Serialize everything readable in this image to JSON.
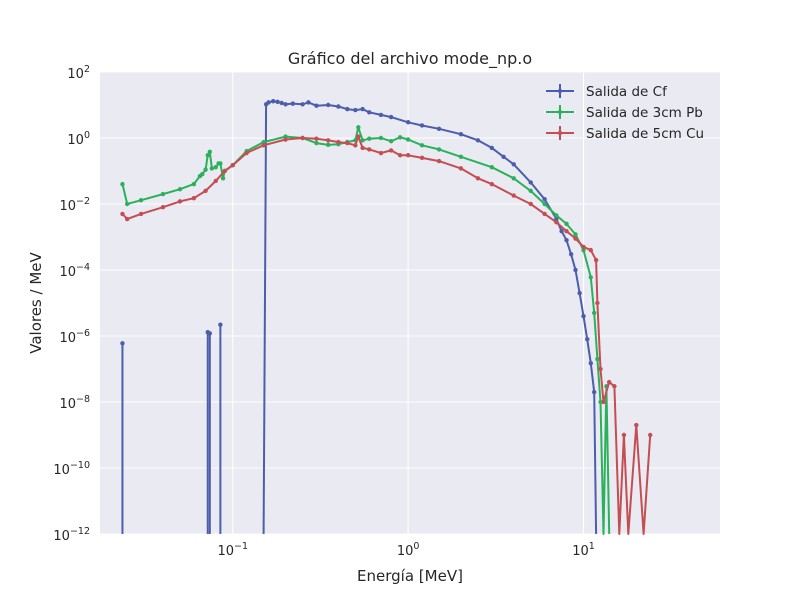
{
  "chart_data": {
    "type": "line",
    "title": "Gráfico del archivo mode_np.o",
    "xlabel": "Energía [MeV]",
    "ylabel": "Valores / MeV",
    "xscale": "log",
    "yscale": "log",
    "xlim": [
      0.0175,
      60
    ],
    "ylim": [
      1e-12,
      100
    ],
    "grid": true,
    "legend_position": "top-right",
    "x_ticks": [
      {
        "value": 0.1,
        "base": "10",
        "exp": "−1"
      },
      {
        "value": 1,
        "base": "10",
        "exp": "0"
      },
      {
        "value": 10,
        "base": "10",
        "exp": "1"
      }
    ],
    "y_ticks": [
      {
        "value": 1e-12,
        "base": "10",
        "exp": "−12"
      },
      {
        "value": 1e-10,
        "base": "10",
        "exp": "−10"
      },
      {
        "value": 1e-08,
        "base": "10",
        "exp": "−8"
      },
      {
        "value": 1e-06,
        "base": "10",
        "exp": "−6"
      },
      {
        "value": 0.0001,
        "base": "10",
        "exp": "−4"
      },
      {
        "value": 0.01,
        "base": "10",
        "exp": "−2"
      },
      {
        "value": 1,
        "base": "10",
        "exp": "0"
      },
      {
        "value": 100,
        "base": "10",
        "exp": "2"
      }
    ],
    "series": [
      {
        "name": "Salida de Cf",
        "color": "#4c5eab",
        "x": [
          0.15,
          0.155,
          0.16,
          0.17,
          0.18,
          0.19,
          0.2,
          0.22,
          0.25,
          0.27,
          0.3,
          0.35,
          0.4,
          0.45,
          0.5,
          0.55,
          0.6,
          0.7,
          0.8,
          1.0,
          1.2,
          1.5,
          2.0,
          2.5,
          3.0,
          3.5,
          4.0,
          5.0,
          6.0,
          7.0,
          7.5,
          8.0,
          8.5,
          9.0,
          9.5,
          10.0,
          10.5,
          11.0,
          11.5,
          11.8
        ],
        "y": [
          1e-12,
          10.5,
          12.0,
          13.0,
          12.5,
          11.5,
          10.5,
          11.0,
          10.5,
          12.0,
          9.5,
          10.0,
          9.0,
          7.5,
          7.0,
          7.5,
          6.0,
          5.0,
          4.3,
          3.0,
          2.4,
          1.9,
          1.3,
          0.85,
          0.5,
          0.27,
          0.16,
          0.045,
          0.014,
          0.0035,
          0.0015,
          0.0008,
          0.0003,
          0.0001,
          2e-05,
          4e-06,
          8e-07,
          1.5e-07,
          2e-08,
          1e-12
        ],
        "spikes": [
          {
            "x": 0.0235,
            "y": 6e-07
          },
          {
            "x": 0.072,
            "y": 1.3e-06
          },
          {
            "x": 0.074,
            "y": 1.2e-06
          },
          {
            "x": 0.085,
            "y": 2.2e-06
          }
        ]
      },
      {
        "name": "Salida de 3cm Pb",
        "color": "#2bb15b",
        "x": [
          0.0235,
          0.025,
          0.03,
          0.04,
          0.05,
          0.06,
          0.065,
          0.067,
          0.07,
          0.072,
          0.074,
          0.076,
          0.08,
          0.083,
          0.085,
          0.088,
          0.09,
          0.1,
          0.12,
          0.15,
          0.2,
          0.25,
          0.3,
          0.35,
          0.4,
          0.45,
          0.5,
          0.52,
          0.55,
          0.6,
          0.7,
          0.8,
          0.9,
          1.0,
          1.2,
          1.5,
          2.0,
          3.0,
          4.0,
          5.0,
          6.0,
          7.0,
          8.0,
          9.0,
          10.0,
          11.0,
          11.5,
          12.0,
          12.5,
          13.0,
          13.5,
          14.0
        ],
        "y": [
          0.04,
          0.01,
          0.013,
          0.02,
          0.028,
          0.04,
          0.07,
          0.08,
          0.11,
          0.3,
          0.38,
          0.12,
          0.13,
          0.17,
          0.17,
          0.06,
          0.1,
          0.15,
          0.4,
          0.75,
          1.1,
          1.0,
          0.7,
          0.62,
          0.65,
          0.75,
          0.85,
          2.1,
          0.85,
          0.95,
          1.0,
          0.8,
          1.05,
          0.9,
          0.6,
          0.45,
          0.27,
          0.13,
          0.06,
          0.025,
          0.01,
          0.0045,
          0.0025,
          0.0012,
          0.0004,
          6e-05,
          5e-06,
          2e-07,
          1e-08,
          1e-12,
          3e-08,
          1e-12
        ]
      },
      {
        "name": "Salida de 5cm Cu",
        "color": "#c44e52",
        "x": [
          0.0235,
          0.025,
          0.03,
          0.04,
          0.05,
          0.06,
          0.07,
          0.08,
          0.09,
          0.1,
          0.12,
          0.15,
          0.2,
          0.25,
          0.3,
          0.35,
          0.4,
          0.45,
          0.5,
          0.52,
          0.55,
          0.6,
          0.7,
          0.8,
          0.9,
          1.0,
          1.2,
          1.5,
          2.0,
          2.5,
          3.0,
          4.0,
          5.0,
          6.0,
          7.0,
          8.0,
          9.0,
          10.0,
          11.0,
          11.8,
          12.0,
          12.5,
          13.0,
          14.0,
          15.0,
          16.0,
          17.0,
          18.0,
          20.0,
          22.0,
          24.0
        ],
        "y": [
          0.005,
          0.0035,
          0.005,
          0.008,
          0.012,
          0.015,
          0.025,
          0.05,
          0.1,
          0.15,
          0.35,
          0.6,
          0.9,
          1.0,
          0.95,
          0.85,
          0.75,
          0.7,
          0.6,
          1.1,
          0.5,
          0.45,
          0.35,
          0.42,
          0.3,
          0.3,
          0.25,
          0.2,
          0.12,
          0.06,
          0.04,
          0.018,
          0.01,
          0.005,
          0.0028,
          0.0015,
          0.0009,
          0.0005,
          0.0004,
          0.0002,
          1e-05,
          1e-07,
          1e-08,
          4e-08,
          3e-08,
          1e-12,
          1e-09,
          1e-12,
          2e-09,
          1e-12,
          1e-09
        ]
      }
    ]
  }
}
